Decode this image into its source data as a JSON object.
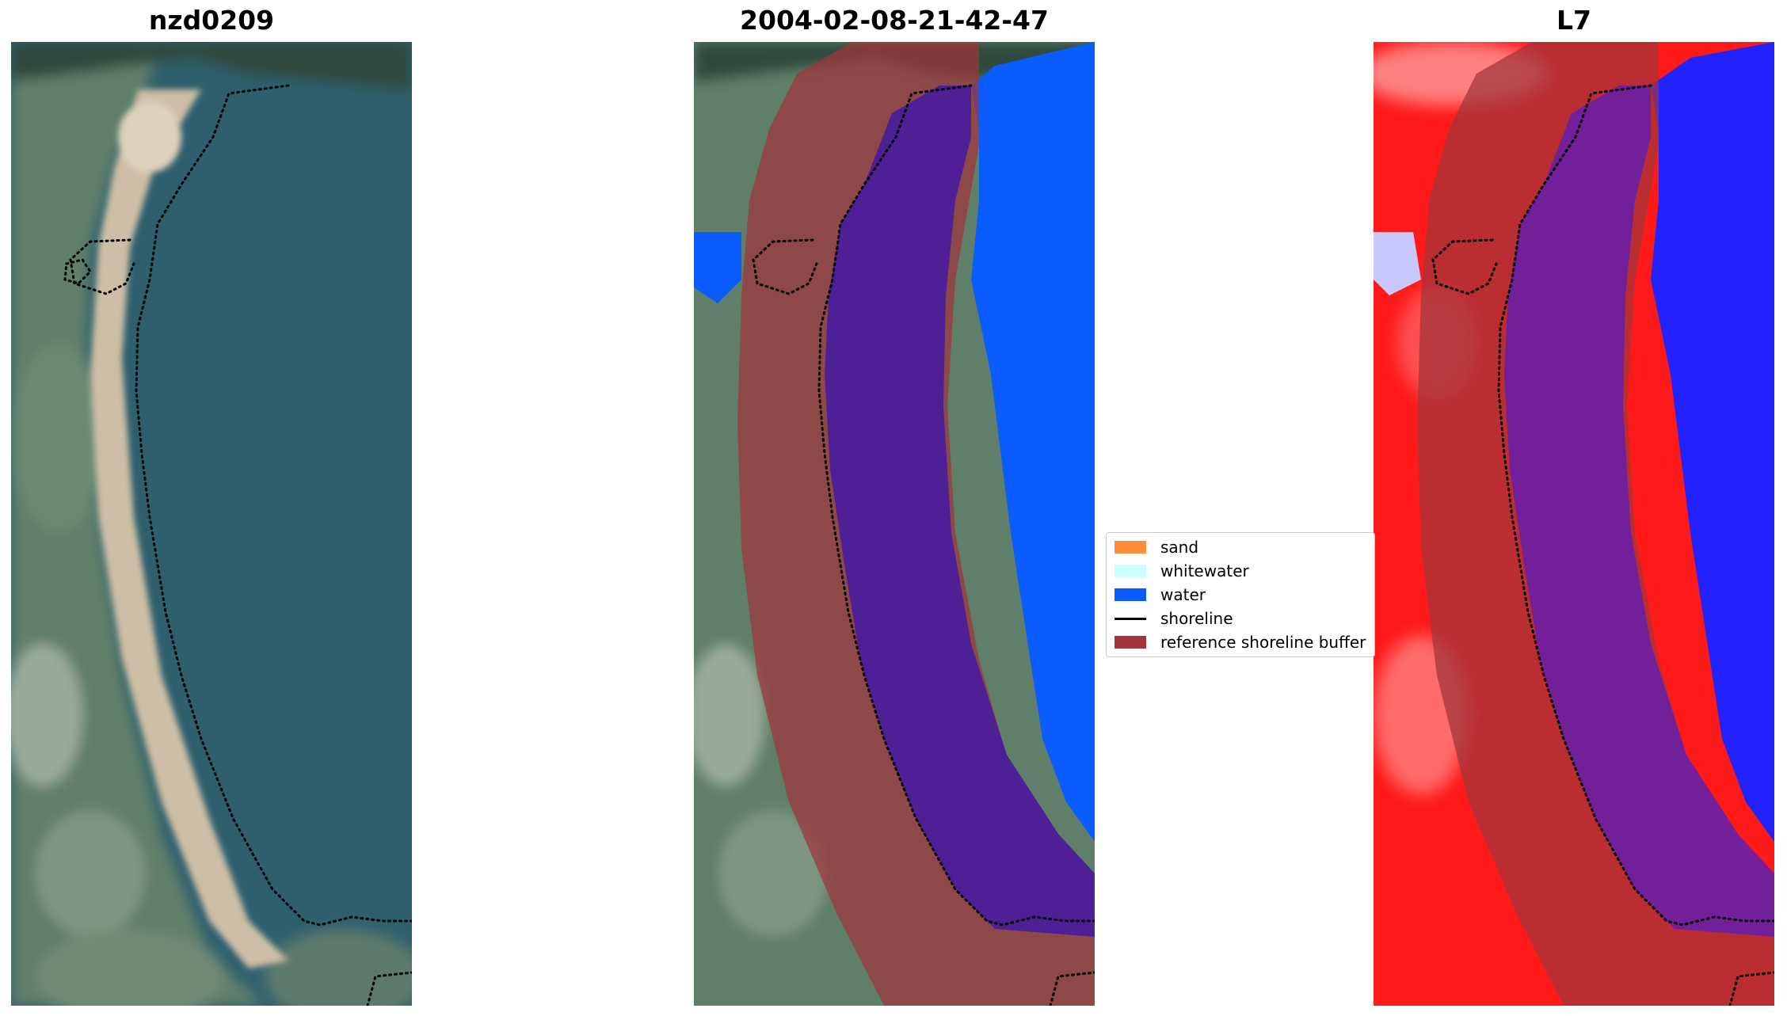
{
  "panels": [
    {
      "title": "nzd0209"
    },
    {
      "title": "2004-02-08-21-42-47"
    },
    {
      "title": "L7"
    }
  ],
  "legend": {
    "items": [
      {
        "label": "sand",
        "color": "#ff8c38",
        "kind": "swatch"
      },
      {
        "label": "whitewater",
        "color": "#ccffff",
        "kind": "swatch"
      },
      {
        "label": "water",
        "color": "#0b5cff",
        "kind": "swatch"
      },
      {
        "label": "shoreline",
        "color": "#000000",
        "kind": "line"
      },
      {
        "label": "reference shoreline buffer",
        "color": "#a0343a",
        "kind": "swatch"
      }
    ]
  },
  "colors": {
    "water_rgb": "#2f5f6e",
    "sand_rgb": "#cdbfa6",
    "land_rgb": "#5f7f6a",
    "water_class": "#0b5cff",
    "buffer_overlay": "#a0343a",
    "index_red": "#ff1a1a",
    "index_blue": "#2222ff"
  }
}
